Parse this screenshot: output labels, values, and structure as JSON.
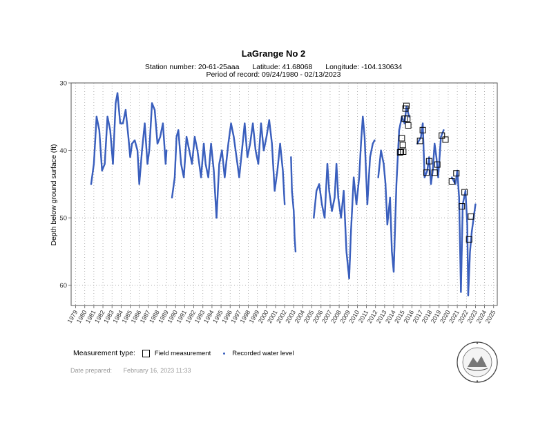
{
  "header": {
    "title": "LaGrange No 2",
    "station": "Station number: 20-61-25aaa",
    "latitude": "Latitude: 41.68068",
    "longitude": "Longitude: -104.130634",
    "period": "Period of record: 09/24/1980 - 02/13/2023"
  },
  "legend": {
    "title": "Measurement type:",
    "field": "Field measurement",
    "recorded": "Recorded water level"
  },
  "footer": {
    "prepared_label": "Date prepared:",
    "prepared_value": "February 16, 2023 11:33"
  },
  "colors": {
    "recorded": "#3a5fbd",
    "field": "#000000",
    "grid": "#8a8a8a"
  },
  "chart_data": {
    "type": "scatter",
    "ylabel": "Depth below ground surface (ft)",
    "xlabel": "",
    "xlim": [
      1978.5,
      2025.4
    ],
    "ylim": [
      30,
      63
    ],
    "y_inverted": true,
    "grid": true,
    "yticks": [
      30,
      40,
      50,
      60
    ],
    "xticks": [
      "1979",
      "1980",
      "1981",
      "1982",
      "1983",
      "1984",
      "1985",
      "1986",
      "1987",
      "1988",
      "1989",
      "1990",
      "1991",
      "1992",
      "1993",
      "1994",
      "1995",
      "1996",
      "1997",
      "1998",
      "1999",
      "2000",
      "2001",
      "2002",
      "2003",
      "2004",
      "2005",
      "2006",
      "2007",
      "2008",
      "2009",
      "2010",
      "2011",
      "2012",
      "2013",
      "2014",
      "2015",
      "2016",
      "2017",
      "2018",
      "2019",
      "2020",
      "2021",
      "2022",
      "2023",
      "2024",
      "2025"
    ],
    "series": [
      {
        "name": "Recorded water level",
        "style": "points",
        "segments": [
          [
            [
              1980.7,
              45
            ],
            [
              1981.0,
              42
            ],
            [
              1981.3,
              35
            ],
            [
              1981.6,
              37
            ],
            [
              1981.9,
              43
            ],
            [
              1982.2,
              42
            ],
            [
              1982.5,
              35
            ],
            [
              1982.8,
              37
            ],
            [
              1983.1,
              42
            ],
            [
              1983.4,
              33
            ],
            [
              1983.6,
              31.5
            ],
            [
              1983.9,
              36
            ],
            [
              1984.2,
              36
            ],
            [
              1984.5,
              34
            ],
            [
              1984.8,
              38
            ],
            [
              1985.0,
              41
            ],
            [
              1985.2,
              39
            ],
            [
              1985.5,
              38.5
            ],
            [
              1985.8,
              40
            ],
            [
              1986.0,
              45
            ],
            [
              1986.3,
              40
            ],
            [
              1986.6,
              36
            ],
            [
              1986.9,
              42
            ],
            [
              1987.1,
              40
            ],
            [
              1987.4,
              33
            ],
            [
              1987.7,
              34
            ],
            [
              1988.0,
              39
            ],
            [
              1988.3,
              38
            ],
            [
              1988.6,
              36
            ],
            [
              1988.9,
              42
            ],
            [
              1989.0,
              40
            ]
          ],
          [
            [
              1989.6,
              47
            ],
            [
              1989.9,
              44
            ],
            [
              1990.1,
              38
            ],
            [
              1990.3,
              37
            ],
            [
              1990.6,
              42
            ],
            [
              1990.9,
              44
            ],
            [
              1991.2,
              38
            ],
            [
              1991.5,
              40
            ],
            [
              1991.8,
              42
            ],
            [
              1992.1,
              38
            ],
            [
              1992.4,
              40
            ],
            [
              1992.8,
              44
            ],
            [
              1993.1,
              39
            ],
            [
              1993.3,
              42
            ],
            [
              1993.6,
              44
            ],
            [
              1993.9,
              39
            ],
            [
              1994.2,
              43
            ],
            [
              1994.5,
              50
            ],
            [
              1994.8,
              42
            ],
            [
              1995.1,
              40
            ],
            [
              1995.4,
              44
            ],
            [
              1995.8,
              39
            ],
            [
              1996.1,
              36
            ],
            [
              1996.4,
              38
            ],
            [
              1996.7,
              41
            ],
            [
              1997.0,
              44
            ],
            [
              1997.3,
              40
            ],
            [
              1997.6,
              36
            ],
            [
              1997.9,
              41
            ],
            [
              1998.2,
              39
            ],
            [
              1998.5,
              36
            ],
            [
              1998.8,
              40
            ],
            [
              1999.1,
              42
            ],
            [
              1999.4,
              36
            ],
            [
              1999.7,
              40
            ],
            [
              2000.0,
              38
            ],
            [
              2000.3,
              35.5
            ],
            [
              2000.6,
              39
            ],
            [
              2000.9,
              46
            ],
            [
              2001.2,
              43
            ],
            [
              2001.5,
              39
            ],
            [
              2001.8,
              43
            ],
            [
              2002.0,
              48
            ]
          ],
          [
            [
              2002.7,
              41
            ],
            [
              2002.8,
              46
            ],
            [
              2003.0,
              49
            ],
            [
              2003.1,
              53
            ],
            [
              2003.2,
              55
            ]
          ],
          [
            [
              2005.2,
              50
            ],
            [
              2005.5,
              46
            ],
            [
              2005.8,
              45
            ],
            [
              2006.1,
              48
            ],
            [
              2006.4,
              50
            ],
            [
              2006.7,
              42
            ],
            [
              2006.9,
              46
            ],
            [
              2007.2,
              49
            ],
            [
              2007.5,
              47
            ],
            [
              2007.7,
              42
            ],
            [
              2007.9,
              47
            ],
            [
              2008.2,
              50
            ],
            [
              2008.5,
              46
            ],
            [
              2008.8,
              55
            ],
            [
              2009.1,
              59
            ],
            [
              2009.3,
              52
            ],
            [
              2009.6,
              44
            ],
            [
              2009.9,
              48
            ],
            [
              2010.2,
              44
            ],
            [
              2010.4,
              39
            ],
            [
              2010.6,
              35
            ],
            [
              2010.8,
              38
            ],
            [
              2011.1,
              48
            ],
            [
              2011.4,
              41
            ],
            [
              2011.7,
              39
            ],
            [
              2011.9,
              38.5
            ]
          ],
          [
            [
              2012.3,
              44
            ],
            [
              2012.6,
              40
            ],
            [
              2012.9,
              42
            ],
            [
              2013.1,
              45
            ],
            [
              2013.3,
              51
            ],
            [
              2013.6,
              47
            ],
            [
              2013.8,
              55
            ],
            [
              2014.0,
              58
            ],
            [
              2014.3,
              45
            ],
            [
              2014.6,
              37
            ],
            [
              2014.9,
              35
            ],
            [
              2015.2,
              36
            ],
            [
              2015.4,
              33.5
            ],
            [
              2015.7,
              35
            ]
          ],
          [
            [
              2016.6,
              39
            ],
            [
              2017.0,
              38
            ],
            [
              2017.2,
              36
            ],
            [
              2017.4,
              44
            ],
            [
              2017.7,
              43
            ],
            [
              2017.9,
              41
            ],
            [
              2018.1,
              45
            ],
            [
              2018.3,
              43
            ],
            [
              2018.5,
              39
            ],
            [
              2018.7,
              41
            ],
            [
              2018.9,
              44
            ],
            [
              2019.2,
              38
            ],
            [
              2019.5,
              37
            ]
          ],
          [
            [
              2020.4,
              44
            ],
            [
              2020.8,
              45
            ],
            [
              2021.0,
              43
            ],
            [
              2021.2,
              47
            ],
            [
              2021.4,
              61
            ],
            [
              2021.6,
              48
            ],
            [
              2021.9,
              46
            ],
            [
              2022.1,
              51
            ],
            [
              2022.2,
              61.5
            ],
            [
              2022.4,
              55
            ],
            [
              2022.6,
              52
            ],
            [
              2022.8,
              50
            ],
            [
              2023.0,
              48
            ]
          ]
        ]
      },
      {
        "name": "Field measurement",
        "style": "open-squares",
        "points": [
          [
            2014.7,
            40.3
          ],
          [
            2014.8,
            40.2
          ],
          [
            2014.9,
            38.2
          ],
          [
            2015.0,
            39.2
          ],
          [
            2015.05,
            40.2
          ],
          [
            2015.2,
            35.3
          ],
          [
            2015.3,
            33.8
          ],
          [
            2015.4,
            33.4
          ],
          [
            2015.5,
            35.3
          ],
          [
            2015.6,
            36.3
          ],
          [
            2016.9,
            38.6
          ],
          [
            2017.2,
            37.0
          ],
          [
            2017.6,
            43.3
          ],
          [
            2017.9,
            41.6
          ],
          [
            2018.5,
            43.3
          ],
          [
            2018.8,
            42.1
          ],
          [
            2019.3,
            37.8
          ],
          [
            2019.7,
            38.4
          ],
          [
            2020.4,
            44.6
          ],
          [
            2020.9,
            43.4
          ],
          [
            2021.5,
            48.3
          ],
          [
            2021.8,
            46.2
          ],
          [
            2022.3,
            53.2
          ],
          [
            2022.5,
            49.8
          ]
        ]
      }
    ]
  }
}
